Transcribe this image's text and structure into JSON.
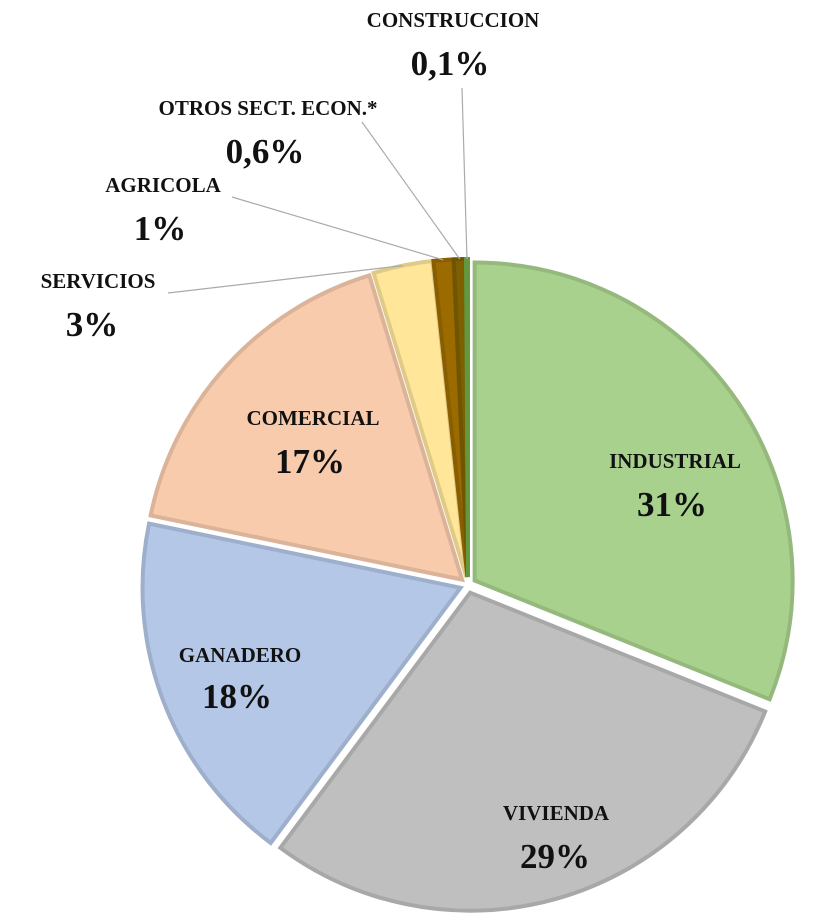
{
  "chart_data": {
    "type": "pie",
    "categories": [
      "INDUSTRIAL",
      "VIVIENDA",
      "GANADERO",
      "COMERCIAL",
      "SERVICIOS",
      "AGRICOLA",
      "OTROS SECT. ECON.*",
      "CONSTRUCCION"
    ],
    "values": [
      31,
      29,
      18,
      17,
      3,
      1,
      0.6,
      0.1
    ],
    "value_labels": [
      "31%",
      "29%",
      "18%",
      "17%",
      "3%",
      "1%",
      "0,6%",
      "0,1%"
    ],
    "colors": [
      "#a9d18e",
      "#bfbfbf",
      "#b4c7e7",
      "#f8cbad",
      "#ffe699",
      "#9c6b00",
      "#7f6000",
      "#70ad47"
    ]
  }
}
